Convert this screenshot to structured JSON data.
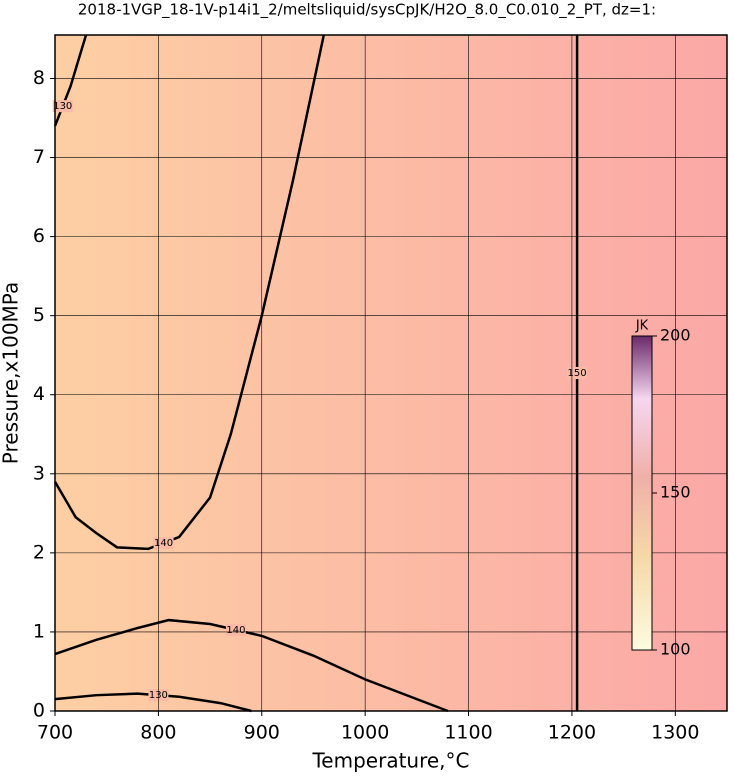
{
  "chart_data": {
    "type": "contour",
    "title": "2018-1VGP_18-1V-p14i1_2/meltsliquid/sysCpJK/H2O_8.0_C0.010_2_PT, dz=1:",
    "x_label": "Temperature,°C",
    "y_label": "Pressure,x100MPa",
    "xlim": [
      700,
      1350
    ],
    "ylim": [
      0,
      8.55
    ],
    "xticks": [
      700,
      800,
      900,
      1000,
      1100,
      1200,
      1300
    ],
    "yticks": [
      0,
      1,
      2,
      3,
      4,
      5,
      6,
      7,
      8
    ],
    "grid": true,
    "contours": [
      {
        "level": 140,
        "x": [
          700,
          720,
          740,
          760,
          790,
          820,
          850,
          870,
          900,
          930,
          960
        ],
        "y": [
          2.9,
          2.45,
          2.25,
          2.07,
          2.05,
          2.2,
          2.7,
          3.5,
          5.0,
          6.7,
          8.55
        ]
      },
      {
        "level": 140,
        "x": [
          700,
          740,
          780,
          810,
          850,
          900,
          950,
          1000,
          1050,
          1080
        ],
        "y": [
          0.72,
          0.9,
          1.05,
          1.15,
          1.1,
          0.95,
          0.7,
          0.4,
          0.15,
          0
        ]
      },
      {
        "level": 130,
        "x": [
          700,
          740,
          780,
          820,
          860,
          890
        ],
        "y": [
          0.15,
          0.2,
          0.22,
          0.18,
          0.1,
          0
        ]
      },
      {
        "level": 130,
        "x": [
          700,
          715,
          730
        ],
        "y": [
          7.4,
          7.9,
          8.55
        ]
      },
      {
        "level": 150,
        "x": [
          1205,
          1205
        ],
        "y": [
          0,
          8.55
        ]
      }
    ],
    "colorbar": {
      "label": "JK",
      "lim": [
        100,
        200
      ],
      "ticks": [
        100,
        150,
        200
      ]
    }
  }
}
